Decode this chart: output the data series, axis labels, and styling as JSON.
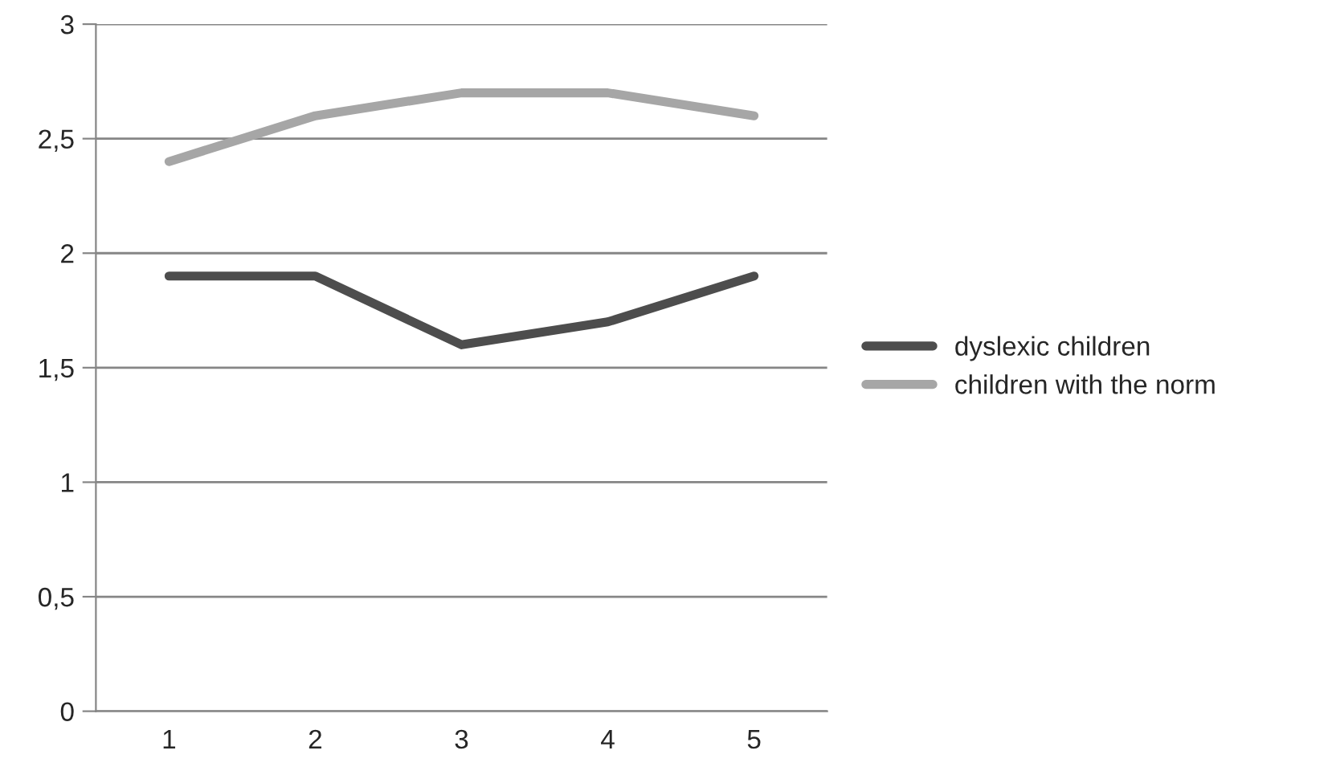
{
  "chart_data": {
    "type": "line",
    "categories": [
      "1",
      "2",
      "3",
      "4",
      "5"
    ],
    "series": [
      {
        "name": "dyslexic children",
        "color": "#4d4d4d",
        "values": [
          1.9,
          1.9,
          1.6,
          1.7,
          1.9
        ]
      },
      {
        "name": "children with the norm",
        "color": "#a6a6a6",
        "values": [
          2.4,
          2.6,
          2.7,
          2.7,
          2.6
        ]
      }
    ],
    "ylim": [
      0,
      3
    ],
    "yticks": [
      0,
      {
        "value": 0.5,
        "label": "0,5"
      },
      1,
      {
        "value": 1.5,
        "label": "1,5"
      },
      2,
      {
        "value": 2.5,
        "label": "2,5"
      },
      3
    ],
    "grid": "y",
    "legend": "right",
    "marker": "none",
    "line_style": "solid"
  }
}
